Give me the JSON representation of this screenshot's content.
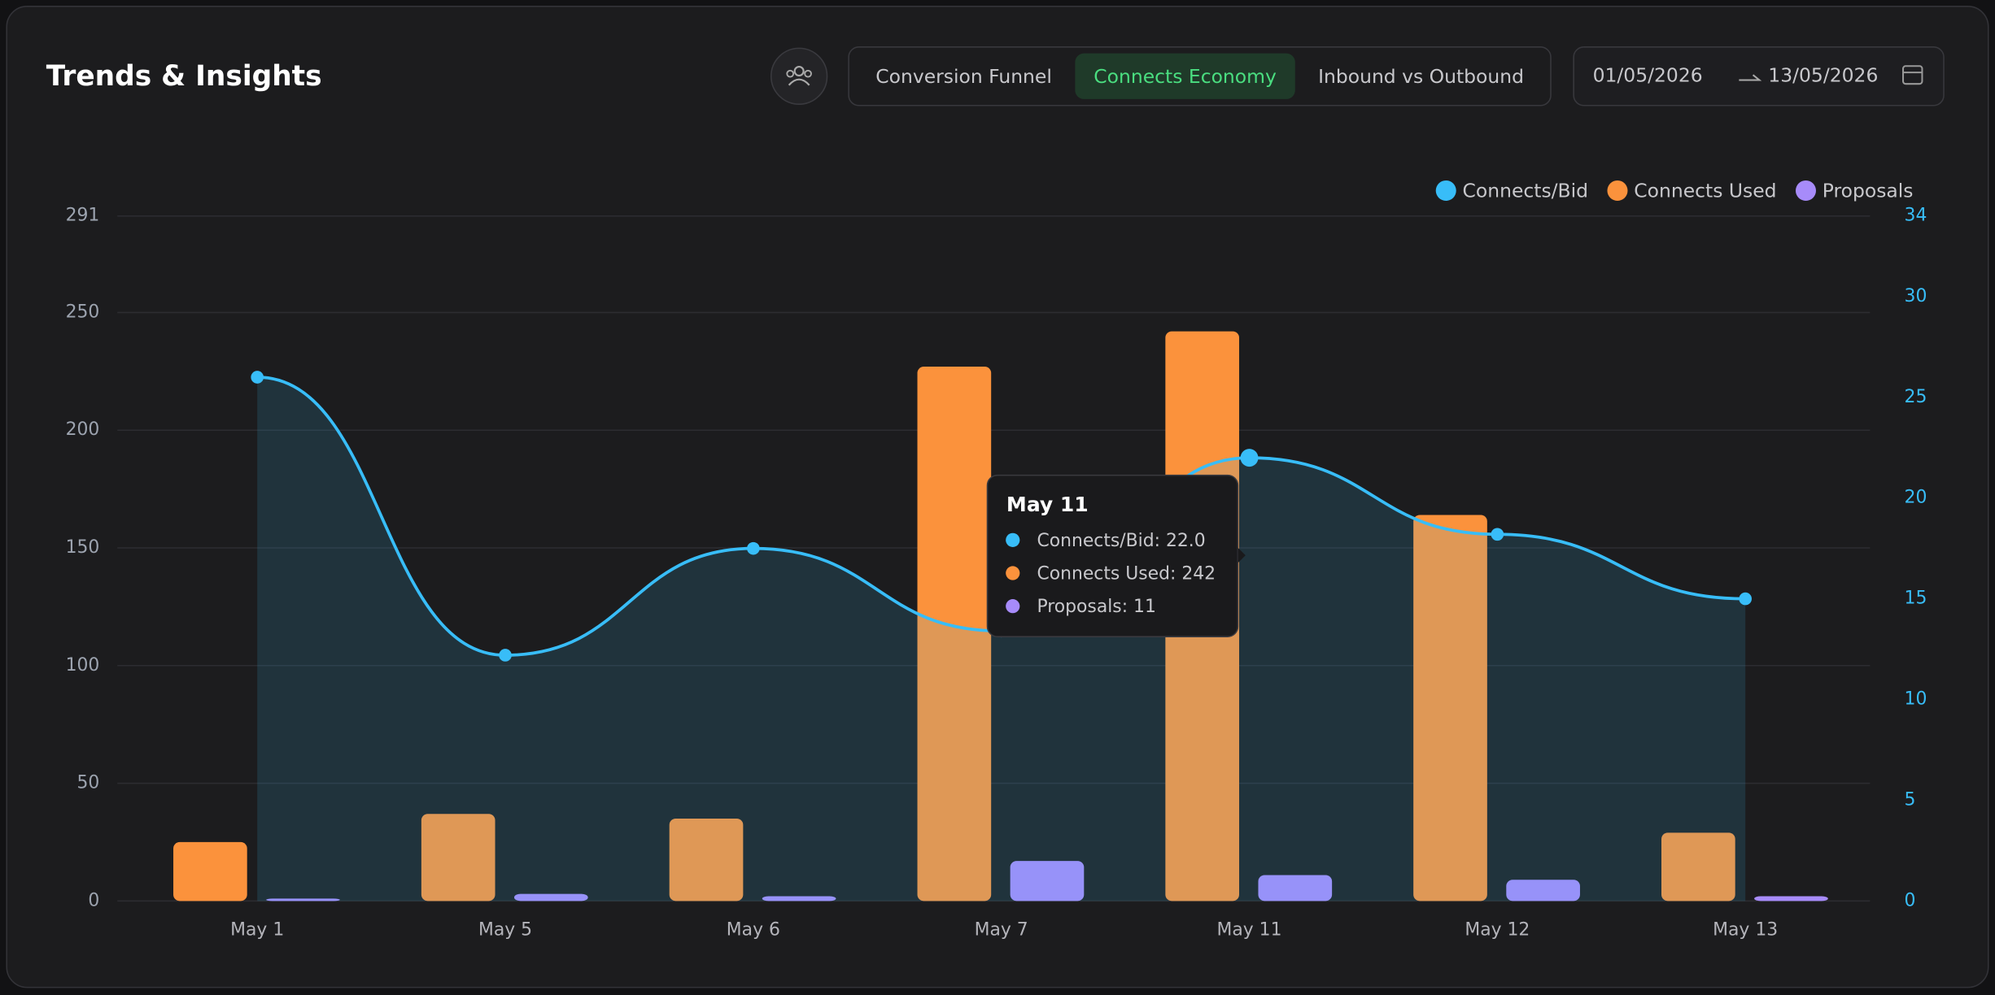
{
  "header": {
    "title": "Trends & Insights",
    "tabs": [
      {
        "label": "Conversion Funnel",
        "active": false
      },
      {
        "label": "Connects Economy",
        "active": true
      },
      {
        "label": "Inbound vs Outbound",
        "active": false
      }
    ],
    "date_range": {
      "start": "01/05/2026",
      "end": "13/05/2026"
    }
  },
  "chart_data": {
    "type": "bar",
    "categories": [
      "May 1",
      "May 5",
      "May 6",
      "May 7",
      "May 11",
      "May 12",
      "May 13"
    ],
    "series": [
      {
        "name": "Connects/Bid",
        "type": "line",
        "axis": "y2",
        "color": "#38bdf8",
        "values": [
          26,
          12.2,
          17.5,
          13.4,
          22.0,
          18.2,
          15.0
        ]
      },
      {
        "name": "Connects Used",
        "type": "bar",
        "color": "#fb923c",
        "values": [
          25,
          37,
          35,
          227,
          242,
          164,
          29
        ]
      },
      {
        "name": "Proposals",
        "type": "bar",
        "color": "#a78bfa",
        "values": [
          1,
          3,
          2,
          17,
          11,
          9,
          2
        ]
      }
    ],
    "ylim": [
      0,
      291
    ],
    "yticks": [
      0,
      50,
      100,
      150,
      200,
      250,
      291
    ],
    "y2lim": [
      0,
      34
    ],
    "y2ticks": [
      0,
      5,
      10,
      15,
      20,
      25,
      30,
      34
    ],
    "grid": true,
    "legend": "top-right",
    "tooltip": {
      "title": "May 11",
      "lines": [
        "Connects/Bid: 22.0",
        "Connects Used: 242",
        "Proposals: 11"
      ]
    }
  }
}
